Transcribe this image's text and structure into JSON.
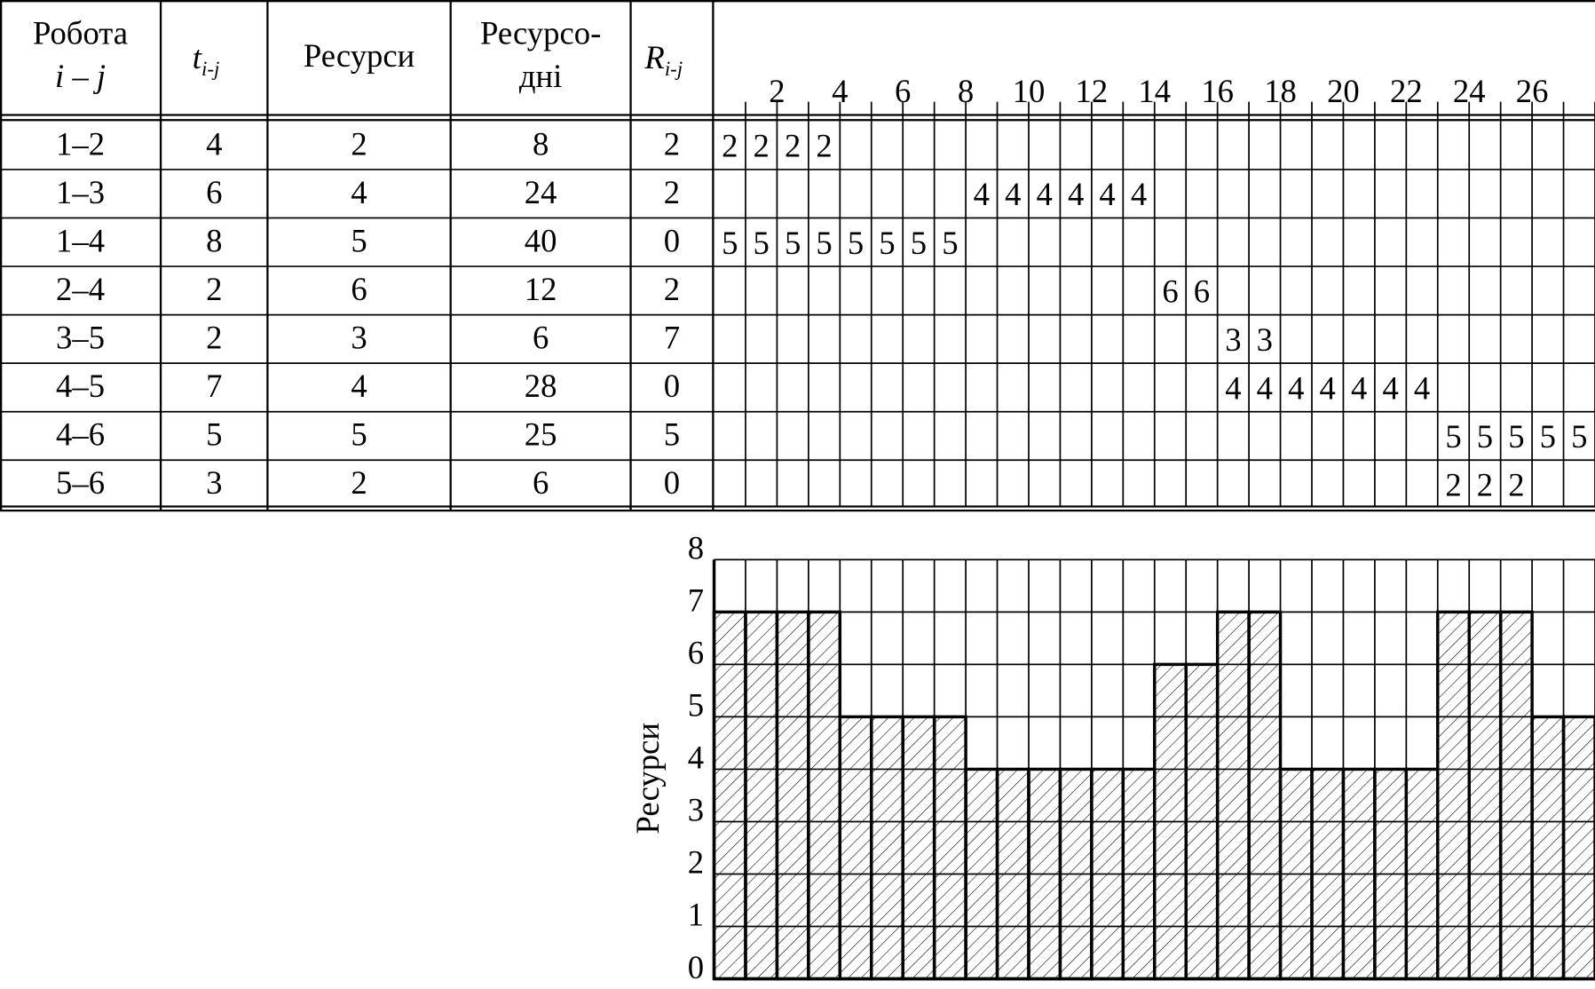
{
  "table": {
    "headers": [
      {
        "lines": [
          "Робота",
          "i – j"
        ]
      },
      {
        "symbol": "t",
        "sub": "i-j"
      },
      {
        "lines": [
          "Ресурси"
        ]
      },
      {
        "lines": [
          "Ресурсо-",
          "дні"
        ]
      },
      {
        "symbol": "R",
        "sub": "i-j"
      }
    ],
    "days": [
      2,
      4,
      6,
      8,
      10,
      12,
      14,
      16,
      18,
      20,
      22,
      24,
      26
    ],
    "rows": [
      {
        "job": "1–2",
        "t": 4,
        "res": 2,
        "rd": 8,
        "R": 2,
        "cells": [
          2,
          2,
          2,
          2,
          null,
          null,
          null,
          null,
          null,
          null,
          null,
          null,
          null,
          null,
          null,
          null,
          null,
          null,
          null,
          null,
          null,
          null,
          null,
          null,
          null,
          null,
          null,
          null
        ]
      },
      {
        "job": "1–3",
        "t": 6,
        "res": 4,
        "rd": 24,
        "R": 2,
        "cells": [
          null,
          null,
          null,
          null,
          null,
          null,
          null,
          null,
          4,
          4,
          4,
          4,
          4,
          4,
          null,
          null,
          null,
          null,
          null,
          null,
          null,
          null,
          null,
          null,
          null,
          null,
          null,
          null
        ]
      },
      {
        "job": "1–4",
        "t": 8,
        "res": 5,
        "rd": 40,
        "R": 0,
        "cells": [
          5,
          5,
          5,
          5,
          5,
          5,
          5,
          5,
          null,
          null,
          null,
          null,
          null,
          null,
          null,
          null,
          null,
          null,
          null,
          null,
          null,
          null,
          null,
          null,
          null,
          null,
          null,
          null
        ]
      },
      {
        "job": "2–4",
        "t": 2,
        "res": 6,
        "rd": 12,
        "R": 2,
        "cells": [
          null,
          null,
          null,
          null,
          null,
          null,
          null,
          null,
          null,
          null,
          null,
          null,
          null,
          null,
          6,
          6,
          null,
          null,
          null,
          null,
          null,
          null,
          null,
          null,
          null,
          null,
          null,
          null
        ]
      },
      {
        "job": "3–5",
        "t": 2,
        "res": 3,
        "rd": 6,
        "R": 7,
        "cells": [
          null,
          null,
          null,
          null,
          null,
          null,
          null,
          null,
          null,
          null,
          null,
          null,
          null,
          null,
          null,
          null,
          3,
          3,
          null,
          null,
          null,
          null,
          null,
          null,
          null,
          null,
          null,
          null
        ]
      },
      {
        "job": "4–5",
        "t": 7,
        "res": 4,
        "rd": 28,
        "R": 0,
        "cells": [
          null,
          null,
          null,
          null,
          null,
          null,
          null,
          null,
          null,
          null,
          null,
          null,
          null,
          null,
          null,
          null,
          4,
          4,
          4,
          4,
          4,
          4,
          4,
          null,
          null,
          null,
          null,
          null
        ]
      },
      {
        "job": "4–6",
        "t": 5,
        "res": 5,
        "rd": 25,
        "R": 5,
        "cells": [
          null,
          null,
          null,
          null,
          null,
          null,
          null,
          null,
          null,
          null,
          null,
          null,
          null,
          null,
          null,
          null,
          null,
          null,
          null,
          null,
          null,
          null,
          null,
          5,
          5,
          5,
          5,
          5
        ]
      },
      {
        "job": "5–6",
        "t": 3,
        "res": 2,
        "rd": 6,
        "R": 0,
        "cells": [
          null,
          null,
          null,
          null,
          null,
          null,
          null,
          null,
          null,
          null,
          null,
          null,
          null,
          null,
          null,
          null,
          null,
          null,
          null,
          null,
          null,
          null,
          null,
          2,
          2,
          2,
          null,
          null
        ]
      }
    ]
  },
  "chart_data": {
    "type": "bar",
    "ylabel": "Ресурси",
    "values": [
      7,
      7,
      7,
      7,
      5,
      5,
      5,
      5,
      4,
      4,
      4,
      4,
      4,
      4,
      6,
      6,
      7,
      7,
      4,
      4,
      4,
      4,
      4,
      7,
      7,
      7,
      5,
      5
    ],
    "ylim": [
      0,
      8
    ],
    "yticks": [
      0,
      1,
      2,
      3,
      4,
      5,
      6,
      7,
      8
    ],
    "grid": true,
    "hatch": true
  }
}
